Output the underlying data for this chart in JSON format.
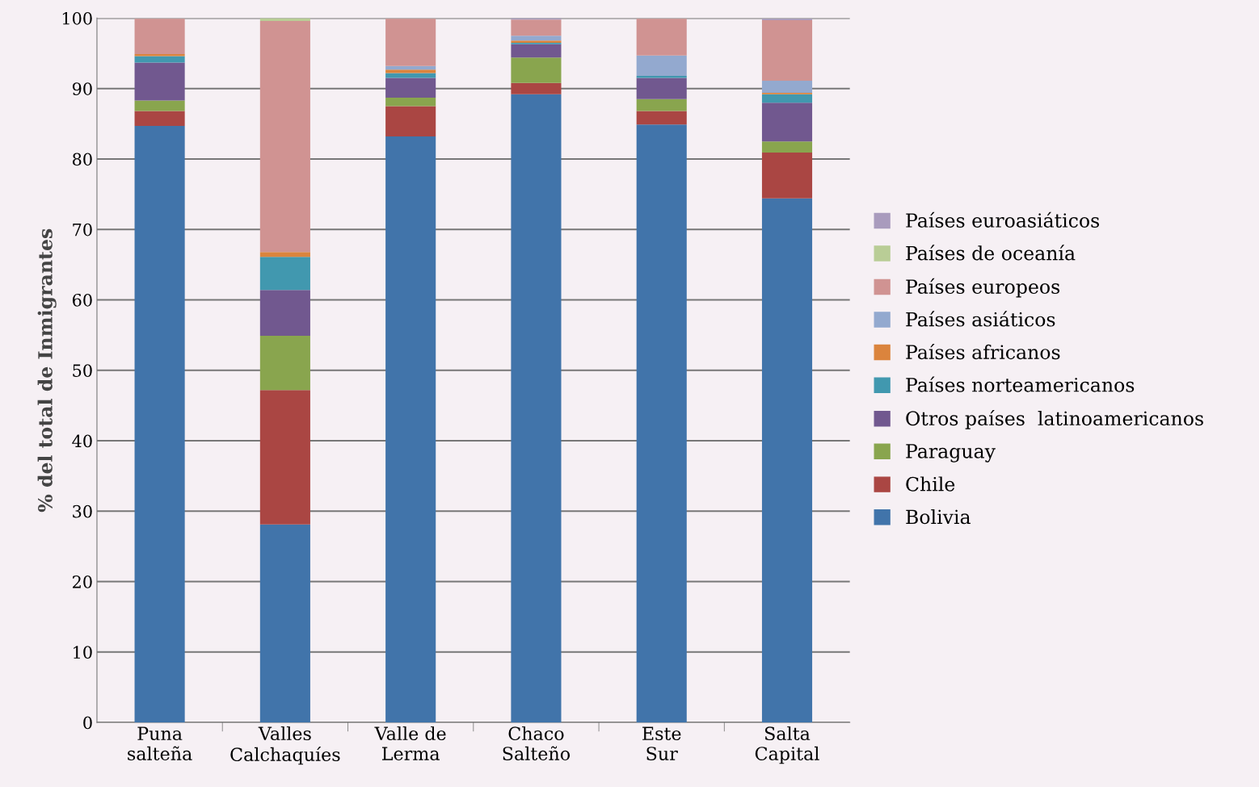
{
  "chart_data": {
    "type": "bar",
    "stacked": true,
    "ylabel": "% del total de Inmigrantes",
    "categories": [
      "Puna\nsalteña",
      "Valles\nCalchaquíes",
      "Valle de\nLerma",
      "Chaco\nSalteño",
      "Este\nSur",
      "Salta\nCapital"
    ],
    "series": [
      {
        "name": "Bolivia",
        "color": "#4174aa",
        "values": [
          84.7,
          28.1,
          83.2,
          89.2,
          84.9,
          74.4
        ]
      },
      {
        "name": "Chile",
        "color": "#aa4643",
        "values": [
          2.1,
          19.1,
          4.3,
          1.6,
          1.9,
          6.5
        ]
      },
      {
        "name": "Paraguay",
        "color": "#89a54e",
        "values": [
          1.5,
          7.7,
          1.2,
          3.6,
          1.7,
          1.6
        ]
      },
      {
        "name": "Otros países  latinoamericanos",
        "color": "#71588f",
        "values": [
          5.4,
          6.5,
          2.8,
          1.9,
          3.0,
          5.5
        ]
      },
      {
        "name": "Países norteamericanos",
        "color": "#4198af",
        "values": [
          0.9,
          4.7,
          0.7,
          0.2,
          0.3,
          1.2
        ]
      },
      {
        "name": "Países africanos",
        "color": "#db843d",
        "values": [
          0.3,
          0.7,
          0.5,
          0.3,
          0.0,
          0.2
        ]
      },
      {
        "name": "Países asiáticos",
        "color": "#93a9cf",
        "values": [
          0.0,
          0.0,
          0.5,
          0.7,
          2.9,
          1.7
        ]
      },
      {
        "name": "Países europeos",
        "color": "#d09392",
        "values": [
          5.0,
          32.8,
          6.7,
          2.3,
          5.2,
          8.6
        ]
      },
      {
        "name": "Países de oceanía",
        "color": "#b9cd96",
        "values": [
          null,
          0.4,
          0.0,
          0.0,
          0.0,
          0.0
        ]
      },
      {
        "name": "Países euroasiáticos",
        "color": "#a99bbd",
        "values": [
          0.0,
          0.0,
          null,
          0.2,
          null,
          0.2
        ]
      }
    ],
    "ylim": [
      0,
      100
    ],
    "yticks": [
      0,
      10,
      20,
      30,
      40,
      50,
      60,
      70,
      80,
      90,
      100
    ],
    "grid": "y",
    "legend": "right"
  }
}
